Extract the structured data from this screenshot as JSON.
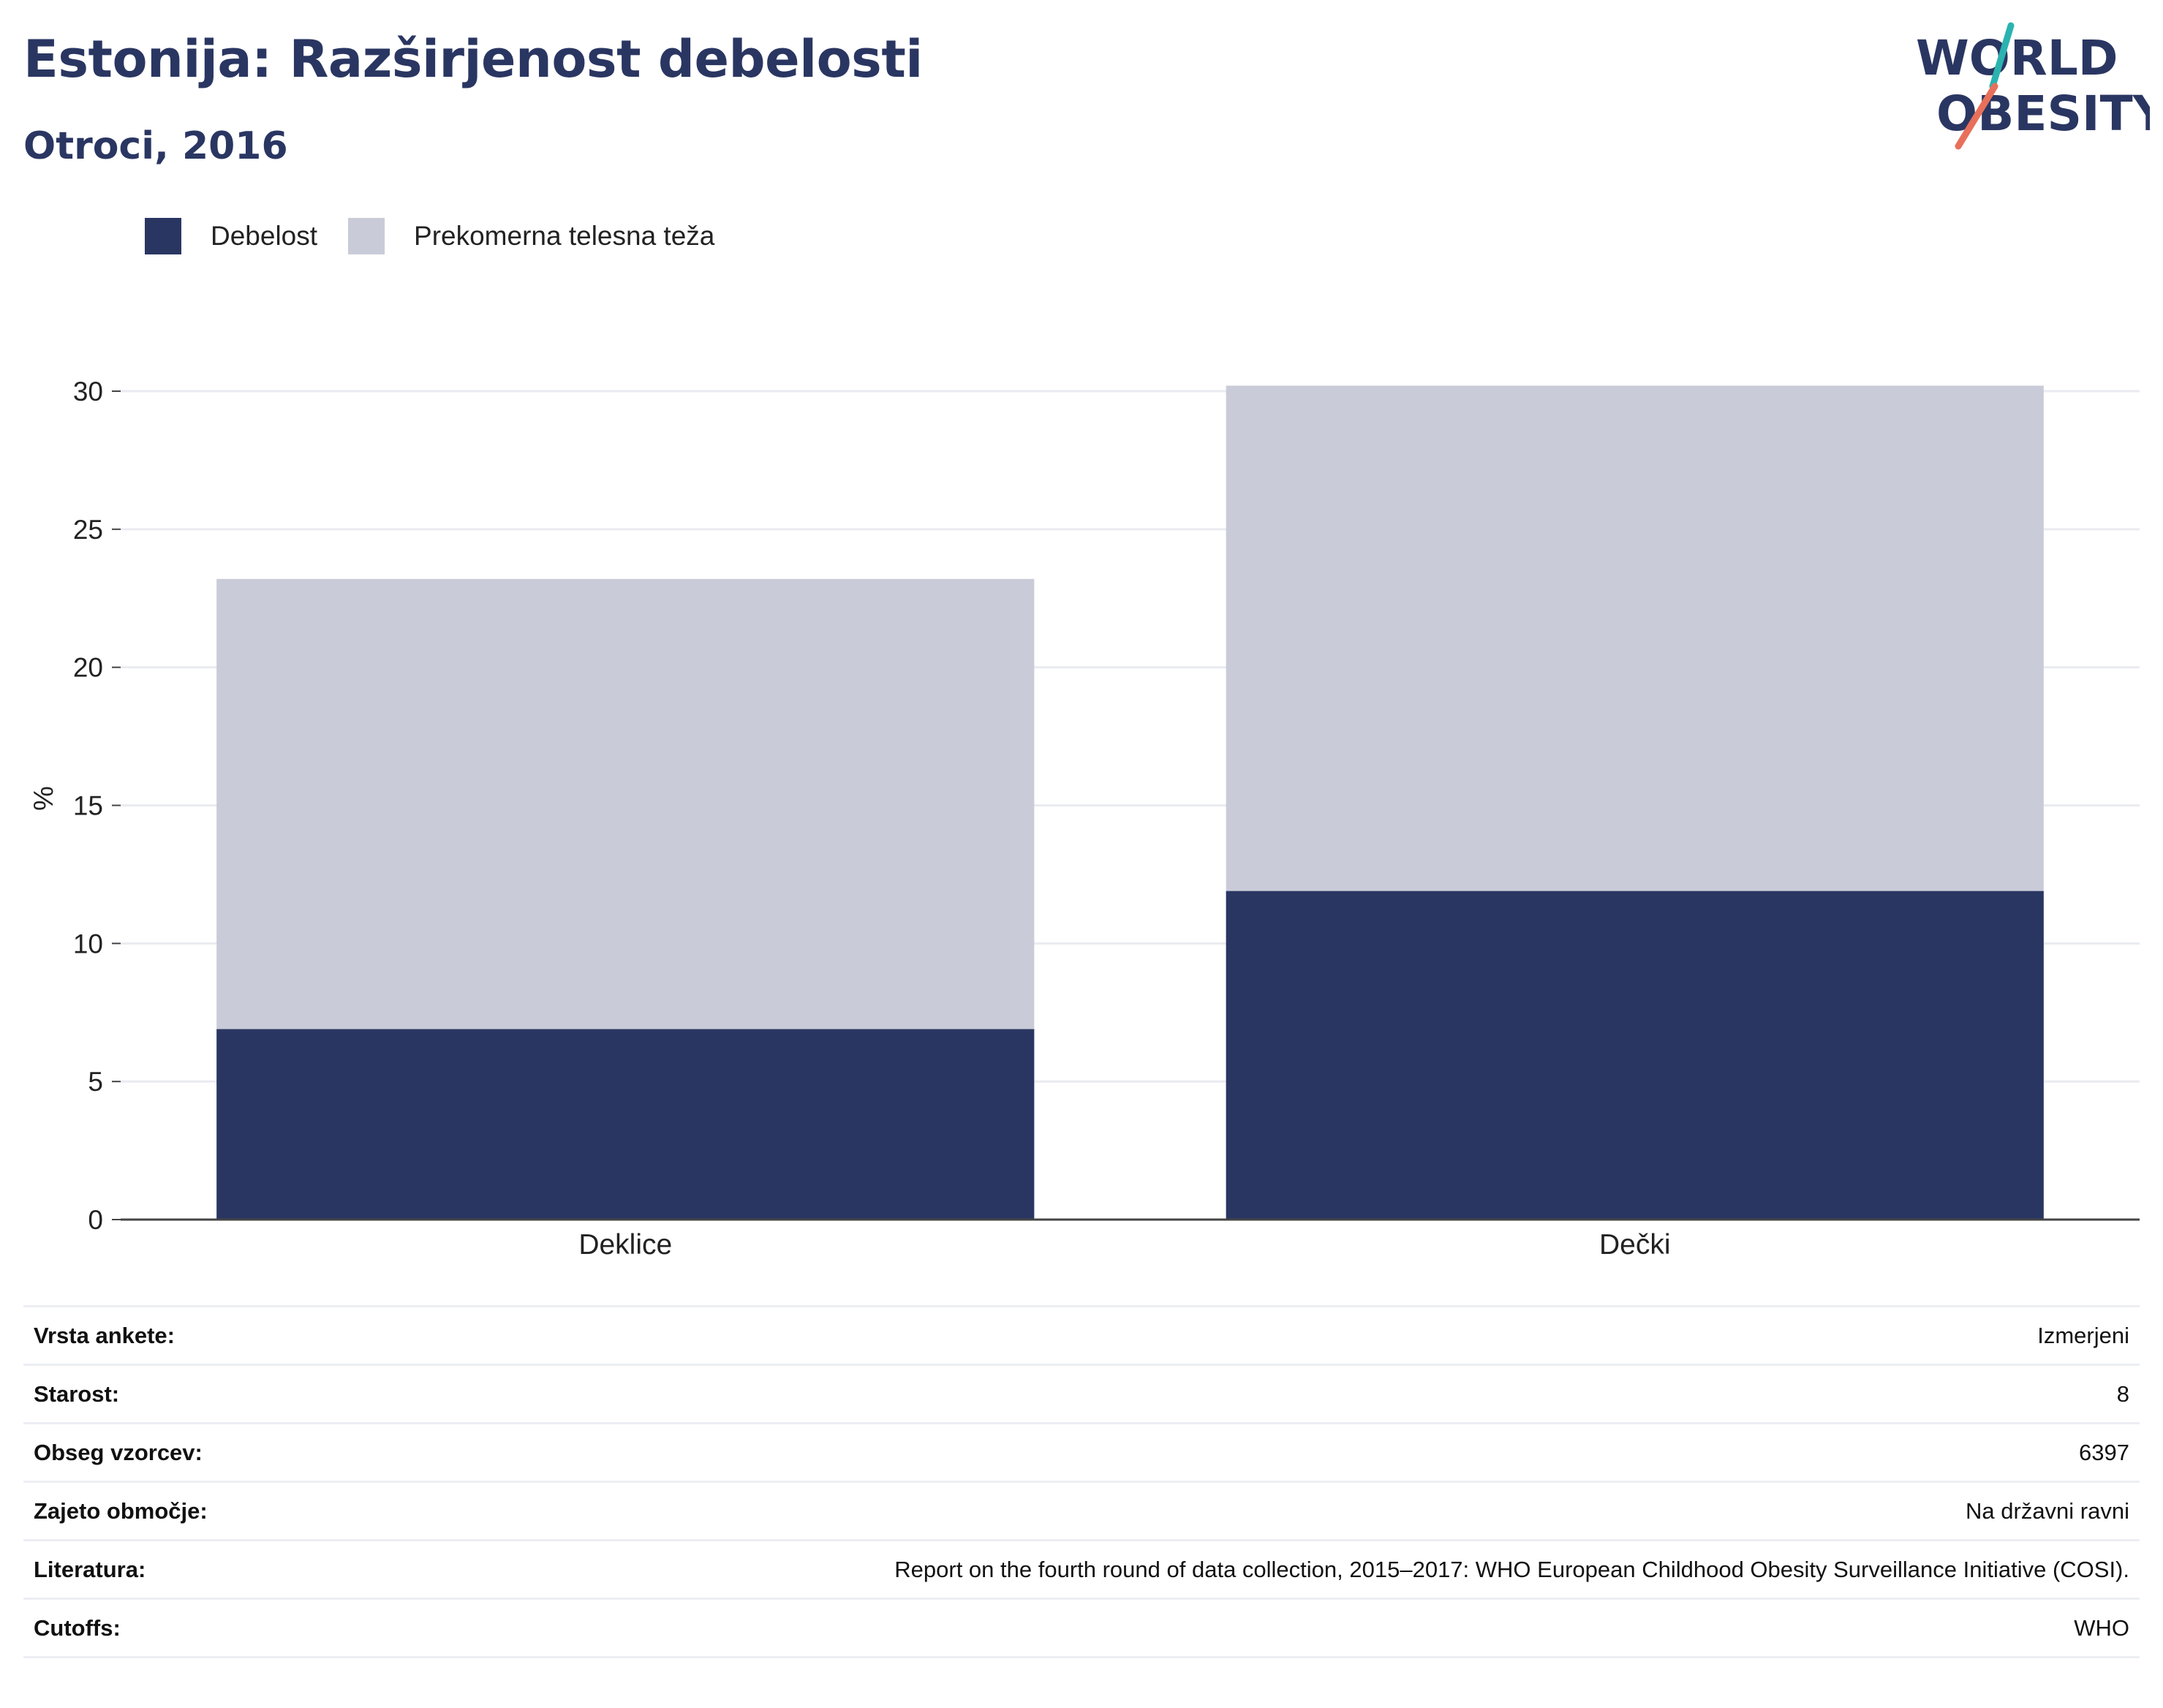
{
  "header": {
    "title": "Estonija: Razširjenost debelosti",
    "subtitle": "Otroci, 2016"
  },
  "logo": {
    "line1": "WORLD",
    "line2": "OBESITY",
    "accent_teal": "#2bb3b0",
    "accent_coral": "#e8705a",
    "text_color": "#2a3662"
  },
  "colors": {
    "obesity": "#2a3662",
    "overweight": "#c9ccd8",
    "title": "#2a3662"
  },
  "legend": [
    {
      "label": "Debelost",
      "color": "#2a3662"
    },
    {
      "label": "Prekomerna telesna teža",
      "color": "#c9ccd8"
    }
  ],
  "chart_data": {
    "type": "bar",
    "stacked": true,
    "categories": [
      "Deklice",
      "Dečki"
    ],
    "series": [
      {
        "name": "Debelost",
        "values": [
          6.9,
          11.9
        ],
        "color": "#2a3662"
      },
      {
        "name": "Prekomerna telesna teža",
        "values": [
          16.3,
          18.3
        ],
        "color": "#c9ccd8"
      }
    ],
    "ylabel": "%",
    "ylim": [
      0,
      30
    ],
    "yticks": [
      0,
      5,
      10,
      15,
      20,
      25,
      30
    ],
    "grid": true,
    "legend_position": "top-left"
  },
  "meta": [
    {
      "key": "Vrsta ankete:",
      "value": "Izmerjeni"
    },
    {
      "key": "Starost:",
      "value": "8"
    },
    {
      "key": "Obseg vzorcev:",
      "value": "6397"
    },
    {
      "key": "Zajeto območje:",
      "value": "Na državni ravni"
    },
    {
      "key": "Literatura:",
      "value": "Report on the fourth round of data collection, 2015–2017: WHO European Childhood Obesity Surveillance Initiative (COSI)."
    },
    {
      "key": "Cutoffs:",
      "value": "WHO"
    }
  ]
}
